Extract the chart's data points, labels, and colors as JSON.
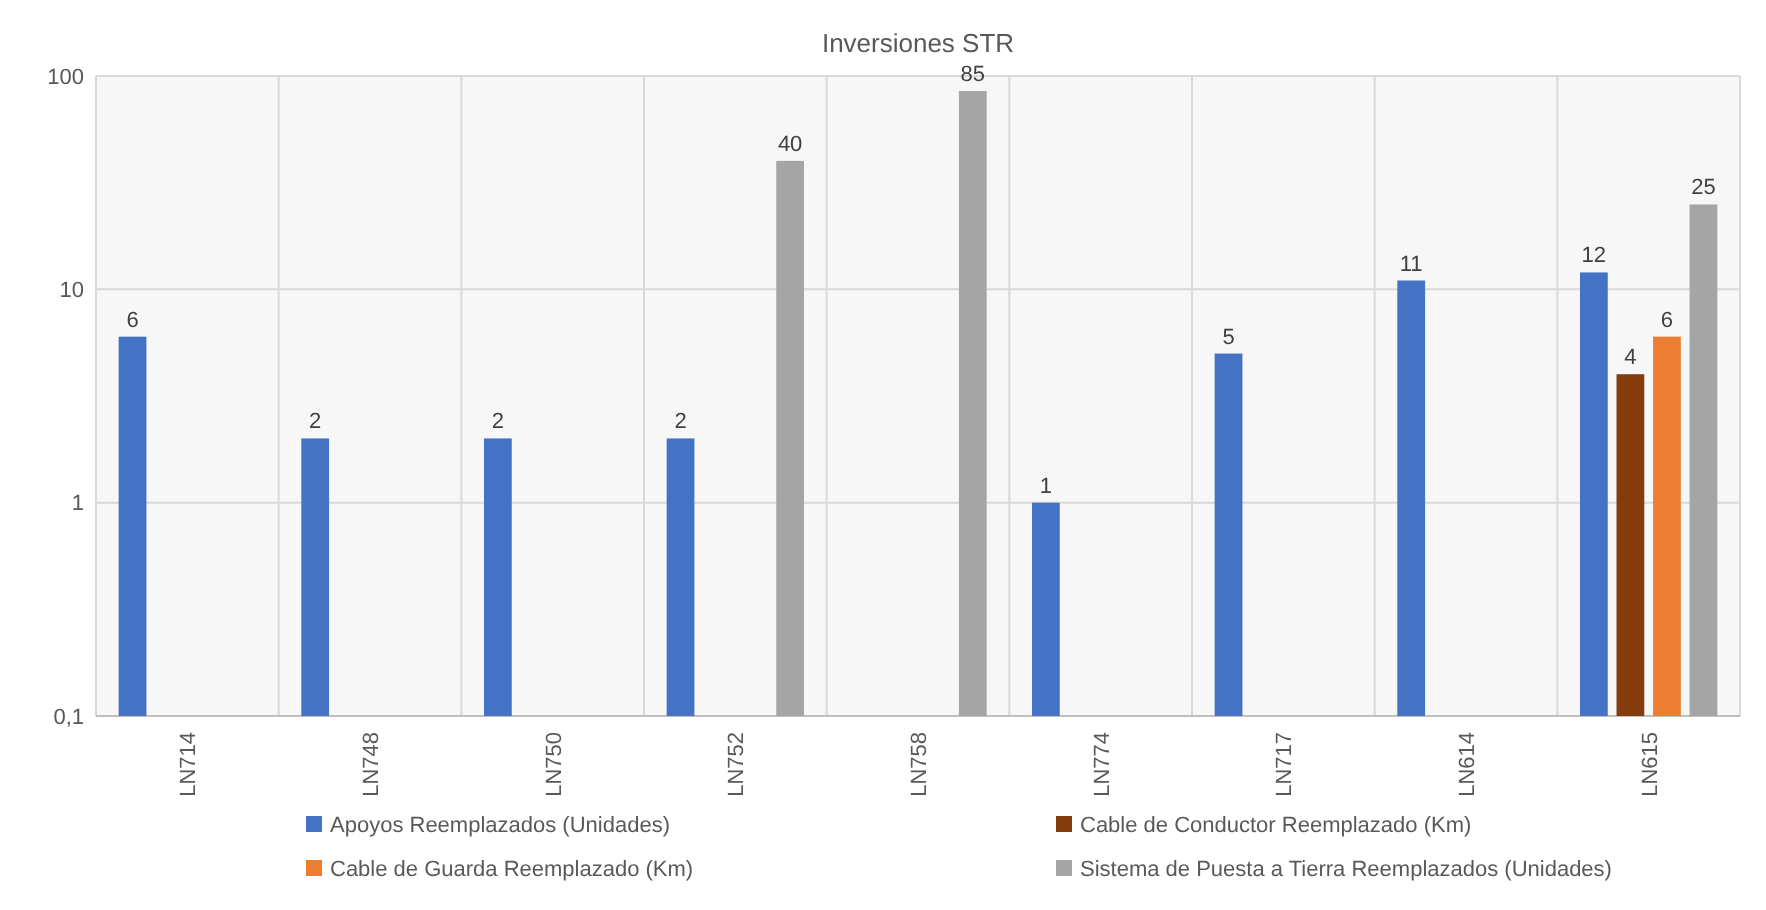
{
  "chart_data": {
    "type": "bar",
    "title": "Inversiones STR",
    "categories": [
      "LN714",
      "LN748",
      "LN750",
      "LN752",
      "LN758",
      "LN774",
      "LN717",
      "LN614",
      "LN615"
    ],
    "series": [
      {
        "name": "Apoyos Reemplazados (Unidades)",
        "color": "#4472c4",
        "values": [
          6,
          2,
          2,
          2,
          null,
          1,
          5,
          11,
          12
        ]
      },
      {
        "name": "Cable de Conductor Reemplazado (Km)",
        "color": "#843c0c",
        "values": [
          null,
          null,
          null,
          null,
          null,
          null,
          null,
          null,
          4
        ]
      },
      {
        "name": "Cable de Guarda Reemplazado (Km)",
        "color": "#ed7d31",
        "values": [
          null,
          null,
          null,
          null,
          null,
          null,
          null,
          null,
          6
        ]
      },
      {
        "name": "Sistema de Puesta a Tierra Reemplazados (Unidades)",
        "color": "#a5a5a5",
        "values": [
          null,
          null,
          null,
          40,
          85,
          null,
          null,
          null,
          25
        ]
      }
    ],
    "ylim": [
      0.1,
      100
    ],
    "yticks": [
      {
        "value": 0.1,
        "label": "0,1"
      },
      1,
      10,
      100
    ],
    "log": true,
    "grid": true,
    "legend": "bottom",
    "data_labels": true
  }
}
